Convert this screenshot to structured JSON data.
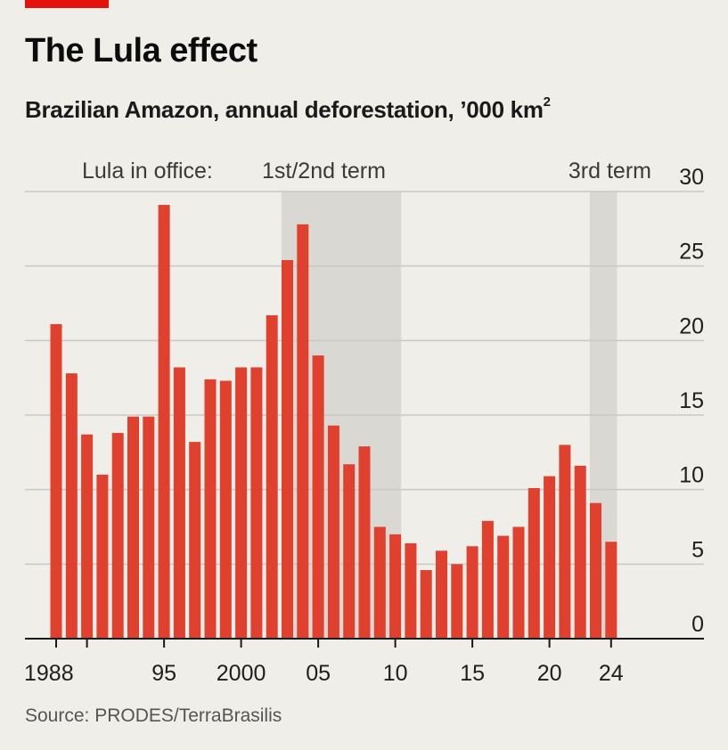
{
  "header": {
    "title": "The Lula effect",
    "subtitle": "Brazilian Amazon, annual deforestation, ’000 km",
    "subtitle_sup": "2"
  },
  "annotations": {
    "lula_label": "Lula in office:",
    "term1_label": "1st/2nd term",
    "term3_label": "3rd term"
  },
  "source": "Source: PRODES/TerraBrasilis",
  "colors": {
    "bar": "#e0402e",
    "shade": "#d9d8d2",
    "grid": "#c9c8c2",
    "accent": "#e3120b",
    "background": "#efeee8"
  },
  "chart_data": {
    "type": "bar",
    "title": "The Lula effect",
    "subtitle": "Brazilian Amazon, annual deforestation, '000 km2",
    "xlabel": "",
    "ylabel": "'000 km2",
    "ylim": [
      0,
      30
    ],
    "yticks": [
      0,
      5,
      10,
      15,
      20,
      25,
      30
    ],
    "grid": true,
    "x": [
      1988,
      1989,
      1990,
      1991,
      1992,
      1993,
      1994,
      1995,
      1996,
      1997,
      1998,
      1999,
      2000,
      2001,
      2002,
      2003,
      2004,
      2005,
      2006,
      2007,
      2008,
      2009,
      2010,
      2011,
      2012,
      2013,
      2014,
      2015,
      2016,
      2017,
      2018,
      2019,
      2020,
      2021,
      2022,
      2023,
      2024
    ],
    "values": [
      21.1,
      17.8,
      13.7,
      11.0,
      13.8,
      14.9,
      14.9,
      29.1,
      18.2,
      13.2,
      17.4,
      17.3,
      18.2,
      18.2,
      21.7,
      25.4,
      27.8,
      19.0,
      14.3,
      11.7,
      12.9,
      7.5,
      7.0,
      6.4,
      4.6,
      5.9,
      5.0,
      6.2,
      7.9,
      6.9,
      7.5,
      10.1,
      10.9,
      13.0,
      11.6,
      9.1,
      6.5
    ],
    "xtick_labels": [
      {
        "year": 1988,
        "label": "1988"
      },
      {
        "year": 1990,
        "label": ""
      },
      {
        "year": 1995,
        "label": "95"
      },
      {
        "year": 2000,
        "label": "2000"
      },
      {
        "year": 2005,
        "label": "05"
      },
      {
        "year": 2010,
        "label": "10"
      },
      {
        "year": 2015,
        "label": "15"
      },
      {
        "year": 2020,
        "label": "20"
      },
      {
        "year": 2024,
        "label": "24"
      }
    ],
    "shaded_periods": [
      {
        "name": "1st/2nd term",
        "start": 2003,
        "end": 2010
      },
      {
        "name": "3rd term",
        "start": 2023,
        "end": 2024
      }
    ]
  }
}
